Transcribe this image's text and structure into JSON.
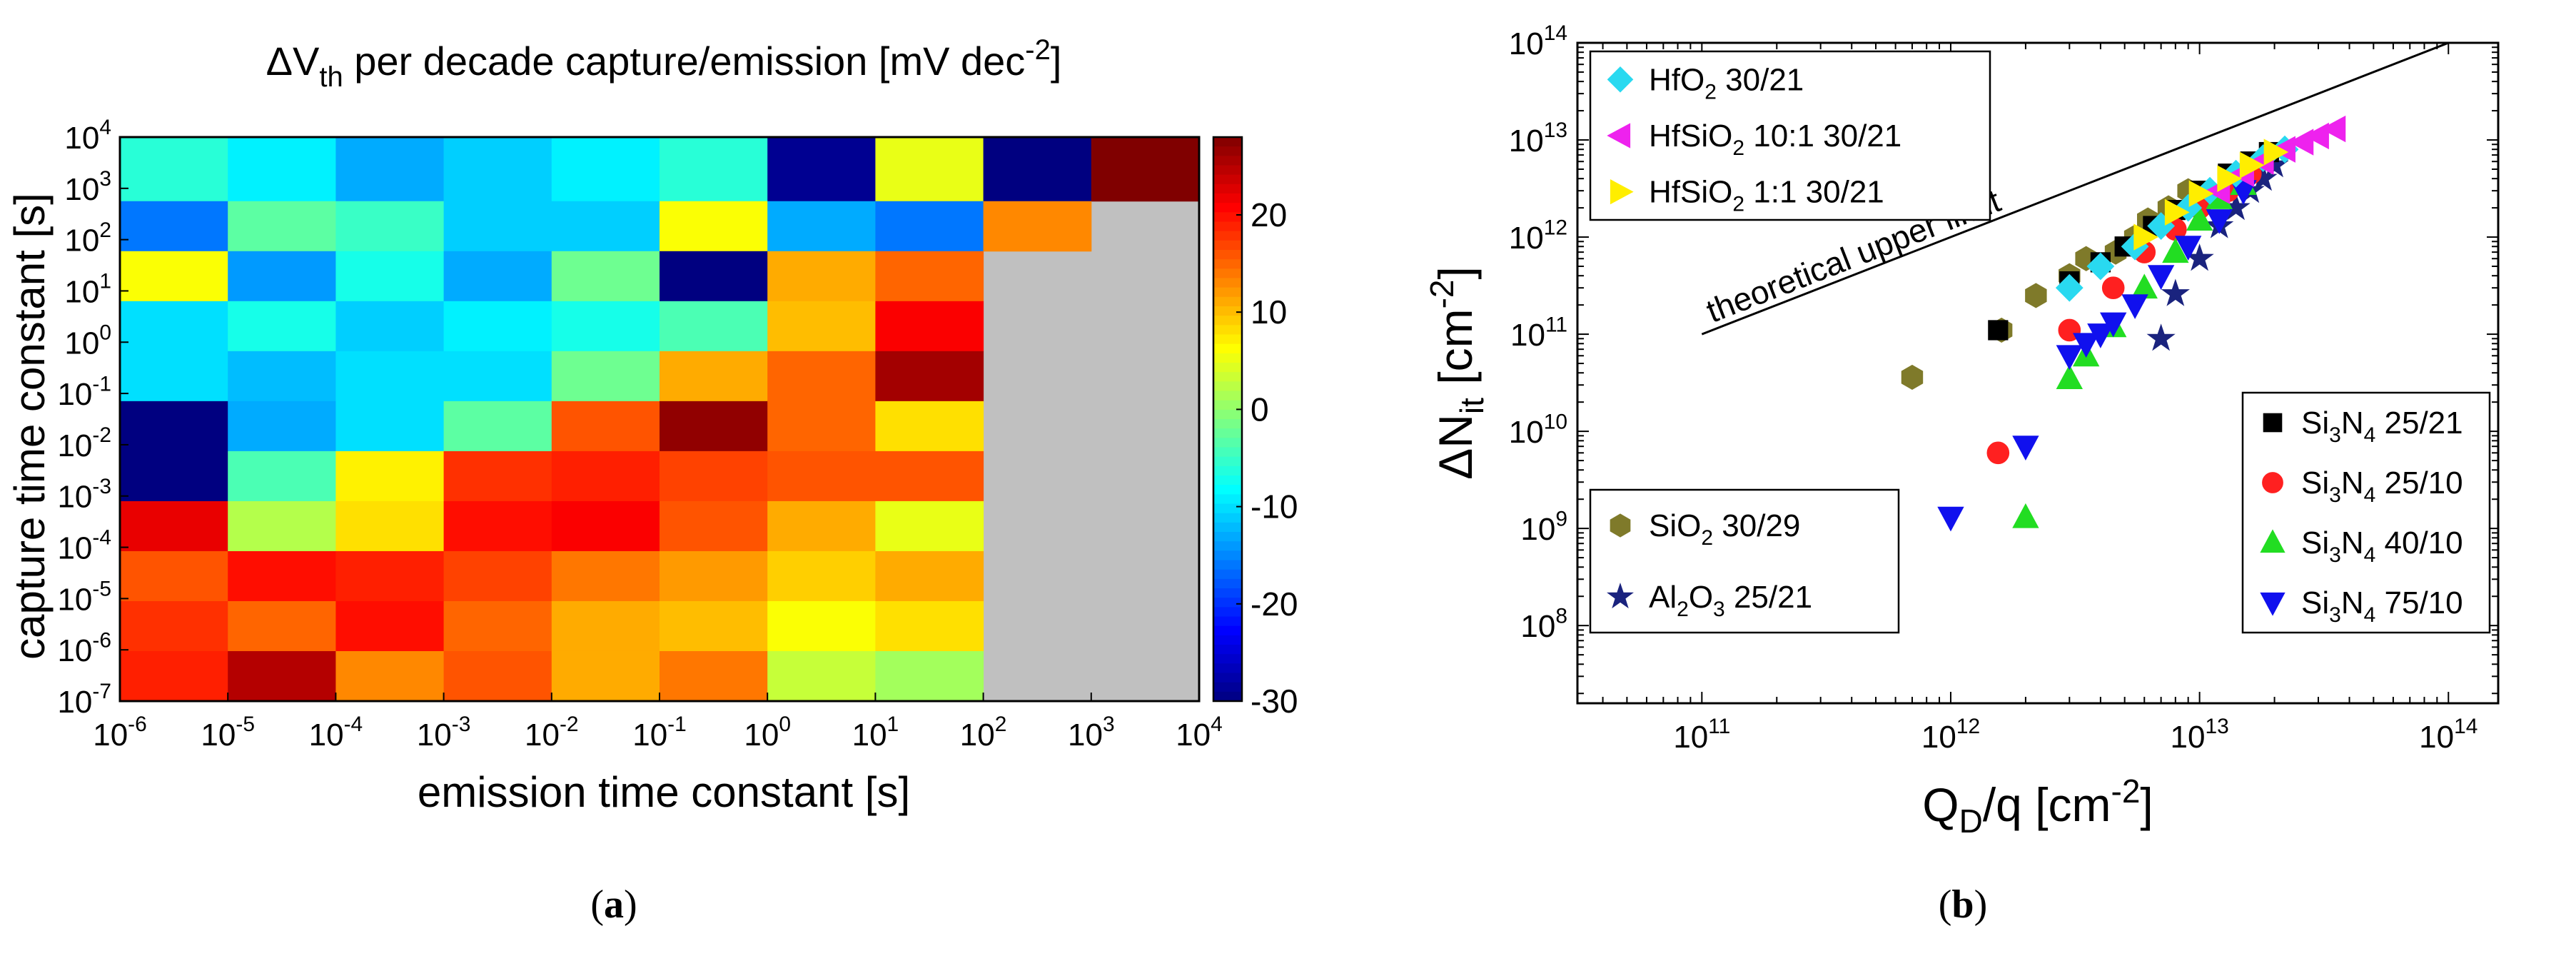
{
  "chart_data": [
    {
      "id": "a",
      "type": "heatmap",
      "panel_label": "(a)",
      "panel_letter": "a",
      "title": "ΔV",
      "title_sub": "th",
      "title_rest": " per decade capture/emission [mV dec",
      "title_sup": "-2",
      "title_end": "]",
      "xlabel": "emission time constant [s]",
      "ylabel": "capture time constant [s]",
      "x_exponents": [
        -6,
        -5,
        -4,
        -3,
        -2,
        -1,
        0,
        1,
        2,
        3,
        4
      ],
      "y_exponents": [
        -7,
        -6,
        -5,
        -4,
        -3,
        -2,
        -1,
        0,
        1,
        2,
        3,
        4
      ],
      "x_tick_labels": [
        "10^-6",
        "10^-5",
        "10^-4",
        "10^-3",
        "10^-2",
        "10^-1",
        "10^0",
        "10^1",
        "10^2",
        "10^3",
        "10^4"
      ],
      "y_tick_labels": [
        "10^-7",
        "10^-6",
        "10^-5",
        "10^-4",
        "10^-3",
        "10^-2",
        "10^-1",
        "10^0",
        "10^1",
        "10^2",
        "10^3",
        "10^4"
      ],
      "colorbar": {
        "min": -30,
        "max": 28,
        "ticks": [
          -30,
          -20,
          -10,
          0,
          10,
          20
        ],
        "tick_labels": [
          "-30",
          "-20",
          "-10",
          "0",
          "10",
          "20"
        ]
      },
      "missing_color": "#c0c0c0",
      "values_top_to_bottom": [
        [
          -6,
          -9,
          -13,
          -11,
          -9,
          -6,
          -29,
          5,
          -30,
          28
        ],
        [
          -16,
          -3,
          -5,
          -11,
          -11,
          6,
          -13,
          -16,
          13,
          null
        ],
        [
          6,
          -14,
          -7,
          -13,
          -2,
          -30,
          11,
          15,
          null,
          null
        ],
        [
          -10,
          -7,
          -11,
          -9,
          -7,
          -4,
          10,
          21,
          null,
          null
        ],
        [
          -10,
          -12,
          -10,
          -10,
          -2,
          11,
          15,
          26,
          null,
          null
        ],
        [
          -30,
          -13,
          -10,
          -3,
          16,
          27,
          15,
          8,
          null,
          null
        ],
        [
          -30,
          -4,
          7,
          18,
          19,
          17,
          16,
          16,
          null,
          null
        ],
        [
          22,
          2,
          8,
          20,
          21,
          16,
          11,
          5,
          null,
          null
        ],
        [
          16,
          20,
          19,
          17,
          14,
          12,
          9,
          11,
          null,
          null
        ],
        [
          18,
          15,
          20,
          15,
          11,
          10,
          6,
          8,
          null,
          null
        ],
        [
          19,
          25,
          13,
          16,
          11,
          14,
          3,
          1,
          null,
          null
        ]
      ]
    },
    {
      "id": "b",
      "type": "scatter",
      "panel_label": "(b)",
      "panel_letter": "b",
      "xlabel": "Q",
      "xlabel_sub": "D",
      "xlabel_rest": "/q [cm",
      "xlabel_sup": "-2",
      "xlabel_end": "]",
      "ylabel": "ΔN",
      "ylabel_sub": "it",
      "ylabel_rest": " [cm",
      "ylabel_sup": "-2",
      "ylabel_end": "]",
      "x_log_range": [
        10.5,
        14.2
      ],
      "y_log_range": [
        7.2,
        14
      ],
      "x_ticks": [
        11,
        12,
        13,
        14
      ],
      "x_tick_labels": [
        "10^11",
        "10^12",
        "10^13",
        "10^14"
      ],
      "y_ticks": [
        8,
        9,
        10,
        11,
        12,
        13,
        14
      ],
      "y_tick_labels": [
        "10^8",
        "10^9",
        "10^10",
        "10^11",
        "10^12",
        "10^13",
        "10^14"
      ],
      "annotation": "theoretical upper limit",
      "upper_limit_line": {
        "x": [
          100000000000.0,
          100000000000000.0
        ],
        "y": [
          100000000000.0,
          100000000000000.0
        ]
      },
      "series": [
        {
          "name": "SiO",
          "sub": "2",
          "rest": " 30/29",
          "marker": "hexagon",
          "color": "#7f7a2a",
          "x": [
            700000000000.0,
            1600000000000.0,
            2200000000000.0,
            3000000000000.0,
            3500000000000.0,
            4600000000000.0,
            5500000000000.0,
            6200000000000.0,
            7500000000000.0,
            9000000000000.0
          ],
          "y": [
            36000000000.0,
            110000000000.0,
            250000000000.0,
            400000000000.0,
            600000000000.0,
            700000000000.0,
            1000000000000.0,
            1500000000000.0,
            2000000000000.0,
            3000000000000.0
          ]
        },
        {
          "name": "Al",
          "sub": "2",
          "mid": "O",
          "sub2": "3",
          "rest": " 25/21",
          "marker": "star",
          "color": "#1a237e",
          "x": [
            7000000000000.0,
            8000000000000.0,
            10000000000000.0,
            12000000000000.0,
            14000000000000.0,
            16000000000000.0,
            18000000000000.0,
            20000000000000.0
          ],
          "y": [
            90000000000.0,
            260000000000.0,
            600000000000.0,
            1300000000000.0,
            2000000000000.0,
            3000000000000.0,
            4000000000000.0,
            5500000000000.0
          ]
        },
        {
          "name": "Si",
          "sub": "3",
          "mid": "N",
          "sub2": "4",
          "rest": " 25/21",
          "marker": "square",
          "color": "#000000",
          "x": [
            1550000000000.0,
            3000000000000.0,
            4000000000000.0,
            5000000000000.0,
            6500000000000.0,
            8000000000000.0,
            10000000000000.0,
            13000000000000.0,
            16000000000000.0,
            19000000000000.0
          ],
          "y": [
            110000000000.0,
            350000000000.0,
            550000000000.0,
            800000000000.0,
            1300000000000.0,
            1900000000000.0,
            3000000000000.0,
            4500000000000.0,
            6000000000000.0,
            7500000000000.0
          ]
        },
        {
          "name": "Si",
          "sub": "3",
          "mid": "N",
          "sub2": "4",
          "rest": " 25/10",
          "marker": "circle",
          "color": "#ff2020",
          "x": [
            1550000000000.0,
            3000000000000.0,
            4500000000000.0,
            6000000000000.0,
            8000000000000.0,
            10000000000000.0,
            13000000000000.0,
            16000000000000.0
          ],
          "y": [
            6000000000.0,
            110000000000.0,
            300000000000.0,
            700000000000.0,
            1200000000000.0,
            2000000000000.0,
            3000000000000.0,
            4500000000000.0
          ]
        },
        {
          "name": "Si",
          "sub": "3",
          "mid": "N",
          "sub2": "4",
          "rest": " 40/10",
          "marker": "triangle-up",
          "color": "#22dd22",
          "x": [
            2000000000000.0,
            3000000000000.0,
            3500000000000.0,
            4500000000000.0,
            6000000000000.0,
            8000000000000.0,
            10000000000000.0,
            12000000000000.0,
            15000000000000.0
          ],
          "y": [
            1300000000.0,
            35000000000.0,
            60000000000.0,
            120000000000.0,
            300000000000.0,
            700000000000.0,
            1500000000000.0,
            2500000000000.0,
            3500000000000.0
          ]
        },
        {
          "name": "Si",
          "sub": "3",
          "mid": "N",
          "sub2": "4",
          "rest": " 75/10",
          "marker": "triangle-down",
          "color": "#1010ee",
          "x": [
            1000000000000.0,
            2000000000000.0,
            3000000000000.0,
            3500000000000.0,
            4000000000000.0,
            4500000000000.0,
            5500000000000.0,
            7000000000000.0,
            9000000000000.0,
            12000000000000.0,
            15000000000000.0
          ],
          "y": [
            1300000000.0,
            7000000000.0,
            60000000000.0,
            80000000000.0,
            100000000000.0,
            130000000000.0,
            200000000000.0,
            400000000000.0,
            800000000000.0,
            1500000000000.0,
            3000000000000.0
          ]
        },
        {
          "name": "HfO",
          "sub": "2",
          "rest": " 30/21",
          "marker": "diamond",
          "color": "#29d9f0",
          "x": [
            3000000000000.0,
            4000000000000.0,
            5500000000000.0,
            7000000000000.0,
            9000000000000.0,
            11000000000000.0,
            14000000000000.0,
            18000000000000.0,
            22000000000000.0
          ],
          "y": [
            300000000000.0,
            500000000000.0,
            800000000000.0,
            1300000000000.0,
            2000000000000.0,
            3000000000000.0,
            4500000000000.0,
            6500000000000.0,
            8000000000000.0
          ]
        },
        {
          "name": "HfSiO",
          "sub": "2",
          "rest": " 10:1 30/21",
          "marker": "triangle-left",
          "color": "#ee22ee",
          "x": [
            12000000000000.0,
            15000000000000.0,
            18000000000000.0,
            22000000000000.0,
            26000000000000.0,
            30000000000000.0,
            35000000000000.0
          ],
          "y": [
            3000000000000.0,
            4500000000000.0,
            6000000000000.0,
            8000000000000.0,
            9500000000000.0,
            11000000000000.0,
            13000000000000.0
          ]
        },
        {
          "name": "HfSiO",
          "sub": "2",
          "rest": " 1:1 30/21",
          "marker": "triangle-right",
          "color": "#ffee00",
          "x": [
            6000000000000.0,
            8000000000000.0,
            10000000000000.0,
            13000000000000.0,
            16000000000000.0,
            20000000000000.0
          ],
          "y": [
            1000000000000.0,
            1800000000000.0,
            2800000000000.0,
            4000000000000.0,
            5500000000000.0,
            7500000000000.0
          ]
        }
      ],
      "legend_groups": [
        [
          6,
          7,
          8
        ],
        [
          0,
          1
        ],
        [
          2,
          3,
          4,
          5
        ]
      ]
    }
  ]
}
